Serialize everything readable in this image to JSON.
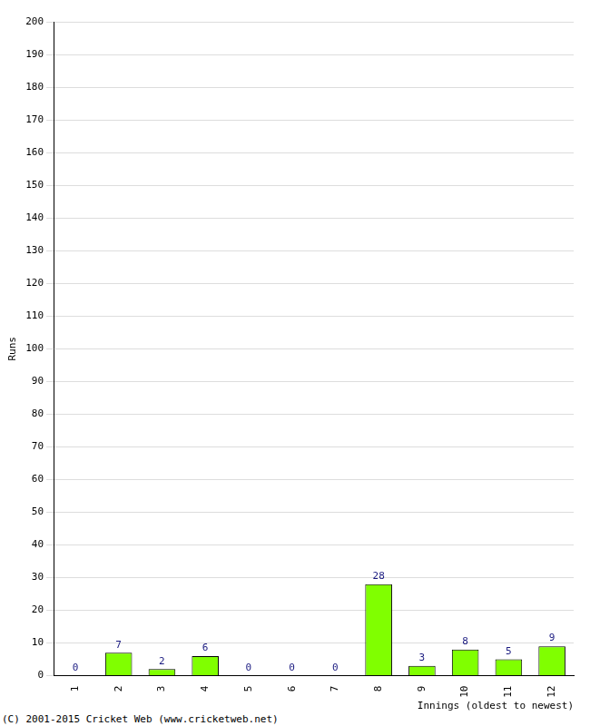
{
  "chart_data": {
    "type": "bar",
    "categories": [
      "1",
      "2",
      "3",
      "4",
      "5",
      "6",
      "7",
      "8",
      "9",
      "10",
      "11",
      "12"
    ],
    "values": [
      0,
      7,
      2,
      6,
      0,
      0,
      0,
      28,
      3,
      8,
      5,
      9
    ],
    "color": "#80ff00",
    "x_label": "Innings (oldest to newest)",
    "y_label": "Runs",
    "annotations": [
      "(C) 2001-2015 Cricket Web (www.cricketweb.net)"
    ],
    "ylim": [
      0,
      200
    ],
    "yticks": [
      0,
      10,
      20,
      30,
      40,
      50,
      60,
      70,
      80,
      90,
      100,
      110,
      120,
      130,
      140,
      150,
      160,
      170,
      180,
      190,
      200
    ],
    "grid": true,
    "data_labels": true
  }
}
